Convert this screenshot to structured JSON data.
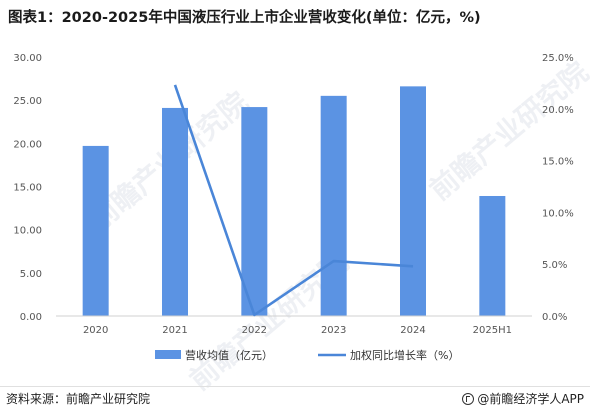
{
  "title": "图表1：2020-2025年中国液压行业上市企业营收变化(单位：亿元，%)",
  "footer": {
    "source": "资料来源：前瞻产业研究院",
    "brand": "@前瞻经济学人APP"
  },
  "watermark": "前瞻产业研究院",
  "colors": {
    "bar": "#5b93e3",
    "line": "#4a86d8"
  },
  "chart_data": {
    "type": "bar+line",
    "categories": [
      "2020",
      "2021",
      "2022",
      "2023",
      "2024",
      "2025H1"
    ],
    "series": [
      {
        "name": "营收均值（亿元）",
        "type": "bar",
        "axis": "left",
        "values": [
          19.7,
          24.1,
          24.2,
          25.5,
          26.6,
          13.9
        ]
      },
      {
        "name": "加权同比增长率（%）",
        "type": "line",
        "axis": "right",
        "values": [
          null,
          22.3,
          0.1,
          5.3,
          4.8,
          null
        ]
      }
    ],
    "y_left": {
      "min": 0,
      "max": 30,
      "step": 5,
      "ticks": [
        "0.00",
        "5.00",
        "10.00",
        "15.00",
        "20.00",
        "25.00",
        "30.00"
      ]
    },
    "y_right": {
      "min": 0,
      "max": 25,
      "step": 5,
      "ticks": [
        "0.0%",
        "5.0%",
        "10.0%",
        "15.0%",
        "20.0%",
        "25.0%"
      ]
    },
    "legend_position": "bottom",
    "grid": false
  }
}
